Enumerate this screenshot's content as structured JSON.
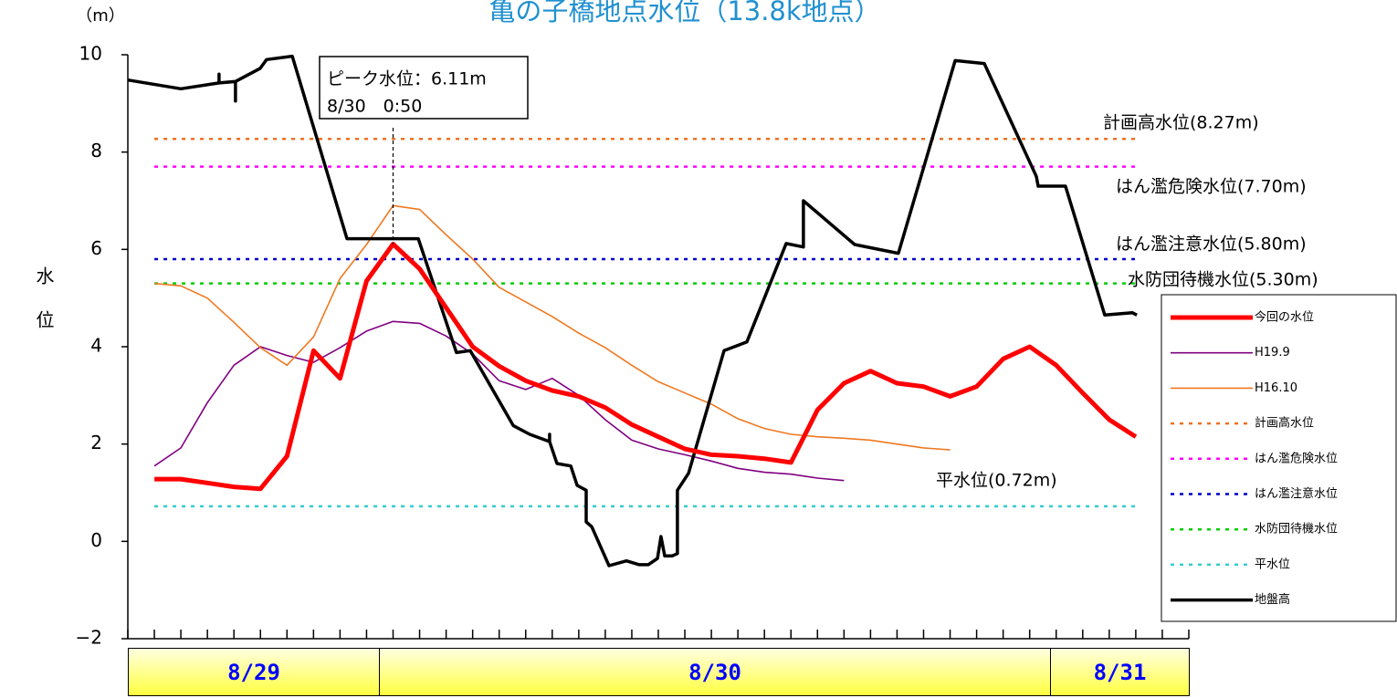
{
  "chart_data": {
    "type": "line",
    "title": "亀の子橋地点水位（13.8k地点）",
    "y_unit": "（m）",
    "y_label": "水位",
    "ylim": [
      -2,
      10
    ],
    "yticks": [
      {
        "value": -2,
        "label": "−2"
      },
      0,
      2,
      4,
      6,
      8,
      10
    ],
    "xlim": [
      0,
      40
    ],
    "xticks": [
      0,
      1,
      2,
      3,
      4,
      5,
      6,
      7,
      8,
      9,
      10,
      11,
      12,
      13,
      14,
      15,
      16,
      17,
      18,
      19,
      20,
      21,
      22,
      23,
      24,
      25,
      26,
      27,
      28,
      29,
      30,
      31,
      32,
      33,
      34,
      35,
      36,
      37,
      38,
      39,
      40
    ],
    "date_labels": [
      "8/29",
      "8/30",
      "8/31"
    ],
    "annotation": {
      "lines": [
        "ピーク水位：6.11m",
        "8/30　0:50"
      ],
      "x": 10,
      "value": 6.11
    },
    "series": [
      {
        "name": "今回の水位",
        "color": "#ff0000",
        "x": [
          1,
          2,
          3,
          4,
          5,
          6,
          7,
          8,
          9,
          10,
          11,
          12,
          13,
          14,
          15,
          16,
          17,
          18,
          19,
          20,
          21,
          22,
          23,
          24,
          25,
          26,
          27,
          28,
          29,
          30,
          31,
          32,
          33,
          34,
          35,
          36,
          37,
          38
        ],
        "values": [
          1.28,
          1.28,
          1.2,
          1.12,
          1.08,
          1.75,
          3.92,
          3.35,
          5.35,
          6.11,
          5.6,
          4.8,
          4.0,
          3.6,
          3.3,
          3.1,
          2.98,
          2.75,
          2.4,
          2.15,
          1.9,
          1.78,
          1.75,
          1.7,
          1.62,
          2.7,
          3.25,
          3.5,
          3.25,
          3.18,
          2.98,
          3.18,
          3.75,
          4.0,
          3.62,
          3.05,
          2.5,
          2.15
        ]
      },
      {
        "name": "H19.9",
        "color": "#800080",
        "x": [
          1,
          2,
          3,
          4,
          5,
          6,
          7,
          8,
          9,
          10,
          11,
          12,
          13,
          14,
          15,
          16,
          17,
          18,
          19,
          20,
          21,
          22,
          23,
          24,
          25,
          26,
          27
        ],
        "values": [
          1.55,
          1.92,
          2.85,
          3.62,
          4.0,
          3.82,
          3.68,
          3.98,
          4.32,
          4.52,
          4.48,
          4.22,
          3.85,
          3.3,
          3.12,
          3.35,
          3.0,
          2.5,
          2.08,
          1.9,
          1.78,
          1.65,
          1.5,
          1.42,
          1.38,
          1.3,
          1.25
        ]
      },
      {
        "name": "H16.10",
        "color": "#f07820",
        "x": [
          1,
          2,
          3,
          4,
          5,
          6,
          7,
          8,
          9,
          10,
          11,
          12,
          13,
          14,
          15,
          16,
          17,
          18,
          19,
          20,
          21,
          22,
          23,
          24,
          25,
          26,
          27,
          28,
          29,
          30,
          31
        ],
        "values": [
          5.3,
          5.25,
          5.0,
          4.5,
          3.98,
          3.62,
          4.2,
          5.4,
          6.1,
          6.9,
          6.82,
          6.3,
          5.8,
          5.22,
          4.92,
          4.62,
          4.28,
          3.98,
          3.62,
          3.28,
          3.05,
          2.82,
          2.52,
          2.32,
          2.2,
          2.15,
          2.12,
          2.08,
          2.0,
          1.92,
          1.88
        ]
      },
      {
        "name": "計画高水位",
        "color": "#f07020",
        "dashed": true,
        "level": 8.27,
        "label": "計画高水位(8.27m)"
      },
      {
        "name": "はん濫危険水位",
        "color": "#ff00ff",
        "dashed": true,
        "level": 7.7,
        "label": "はん濫危険水位(7.70m)"
      },
      {
        "name": "はん濫注意水位",
        "color": "#0000cc",
        "dashed": true,
        "level": 5.8,
        "label": "はん濫注意水位(5.80m)"
      },
      {
        "name": "水防団待機水位",
        "color": "#00cc00",
        "dashed": true,
        "level": 5.3,
        "label": "水防団待機水位(5.30m)"
      },
      {
        "name": "平水位",
        "color": "#33cccc",
        "dashed": true,
        "level": 0.72,
        "label": "平水位(0.72m)"
      },
      {
        "name": "地盤高",
        "color": "#000000",
        "x": [
          0,
          2,
          3.44,
          3.44,
          3.44,
          4.06,
          4.06,
          4.06,
          4.99,
          5.23,
          6.2,
          8.26,
          9.91,
          10.95,
          12.39,
          12.91,
          14.53,
          15.15,
          15.9,
          15.9,
          15.9,
          16.18,
          16.7,
          16.94,
          17.28,
          17.28,
          17.49,
          18.14,
          18.8,
          19.28,
          19.62,
          19.97,
          20.1,
          20.24,
          20.52,
          20.72,
          20.72,
          21.14,
          22.48,
          23.34,
          24.82,
          25.47,
          25.47,
          27.4,
          29.05,
          31.19,
          32.29,
          34.25,
          34.32,
          35.35,
          36.83,
          37.87,
          38.04
        ],
        "values": [
          9.48,
          9.3,
          9.42,
          9.6,
          9.42,
          9.45,
          9.05,
          9.45,
          9.72,
          9.9,
          9.97,
          6.22,
          6.22,
          6.22,
          3.88,
          3.92,
          2.38,
          2.2,
          2.05,
          2.2,
          2.05,
          1.6,
          1.55,
          1.15,
          1.05,
          0.4,
          0.3,
          -0.5,
          -0.4,
          -0.48,
          -0.48,
          -0.35,
          0.1,
          -0.3,
          -0.3,
          -0.25,
          1.05,
          1.4,
          3.92,
          4.1,
          6.12,
          6.05,
          7.0,
          6.1,
          5.92,
          9.88,
          9.82,
          7.5,
          7.3,
          7.3,
          4.65,
          4.7,
          4.65
        ]
      }
    ]
  }
}
